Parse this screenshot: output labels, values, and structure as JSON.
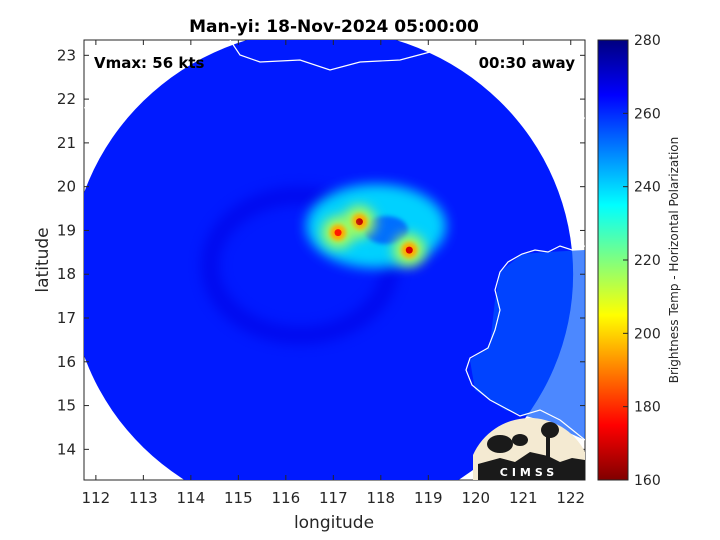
{
  "chart_data": {
    "type": "heatmap",
    "title": "Man-yi: 18-Nov-2024 05:00:00",
    "xlabel": "longitude",
    "ylabel": "latitude",
    "xlim": [
      111.75,
      122.3
    ],
    "ylim": [
      13.3,
      23.35
    ],
    "xticks": [
      112,
      113,
      114,
      115,
      116,
      117,
      118,
      119,
      120,
      121,
      122
    ],
    "yticks": [
      14,
      15,
      16,
      17,
      18,
      19,
      20,
      21,
      22,
      23
    ],
    "grid": false,
    "annotations": {
      "top_left": "Vmax: 56 kts",
      "top_right": "00:30 away"
    },
    "colorbar": {
      "label": "Brightness Temp - Horizontal Polarization",
      "min": 160,
      "max": 280,
      "ticks": [
        160,
        180,
        200,
        220,
        240,
        260,
        280
      ],
      "colormap": "jet",
      "placement": "right"
    },
    "swath": {
      "center_lon": 116.75,
      "center_lat": 18.0,
      "radius_deg_lon": 5.3,
      "radius_deg_lat": 5.6
    },
    "features": [
      {
        "name": "background",
        "value": 262
      },
      {
        "name": "storm core region",
        "lon": 117.9,
        "lat": 19.1,
        "value": 238
      },
      {
        "name": "convective maximum",
        "lon": 117.55,
        "lat": 19.2,
        "value": 168
      },
      {
        "name": "convective maximum",
        "lon": 118.6,
        "lat": 18.55,
        "value": 170
      },
      {
        "name": "convective maximum",
        "lon": 117.1,
        "lat": 18.95,
        "value": 178
      }
    ],
    "land_mask_temp": 255
  },
  "logo": {
    "text": "CIMSS"
  }
}
